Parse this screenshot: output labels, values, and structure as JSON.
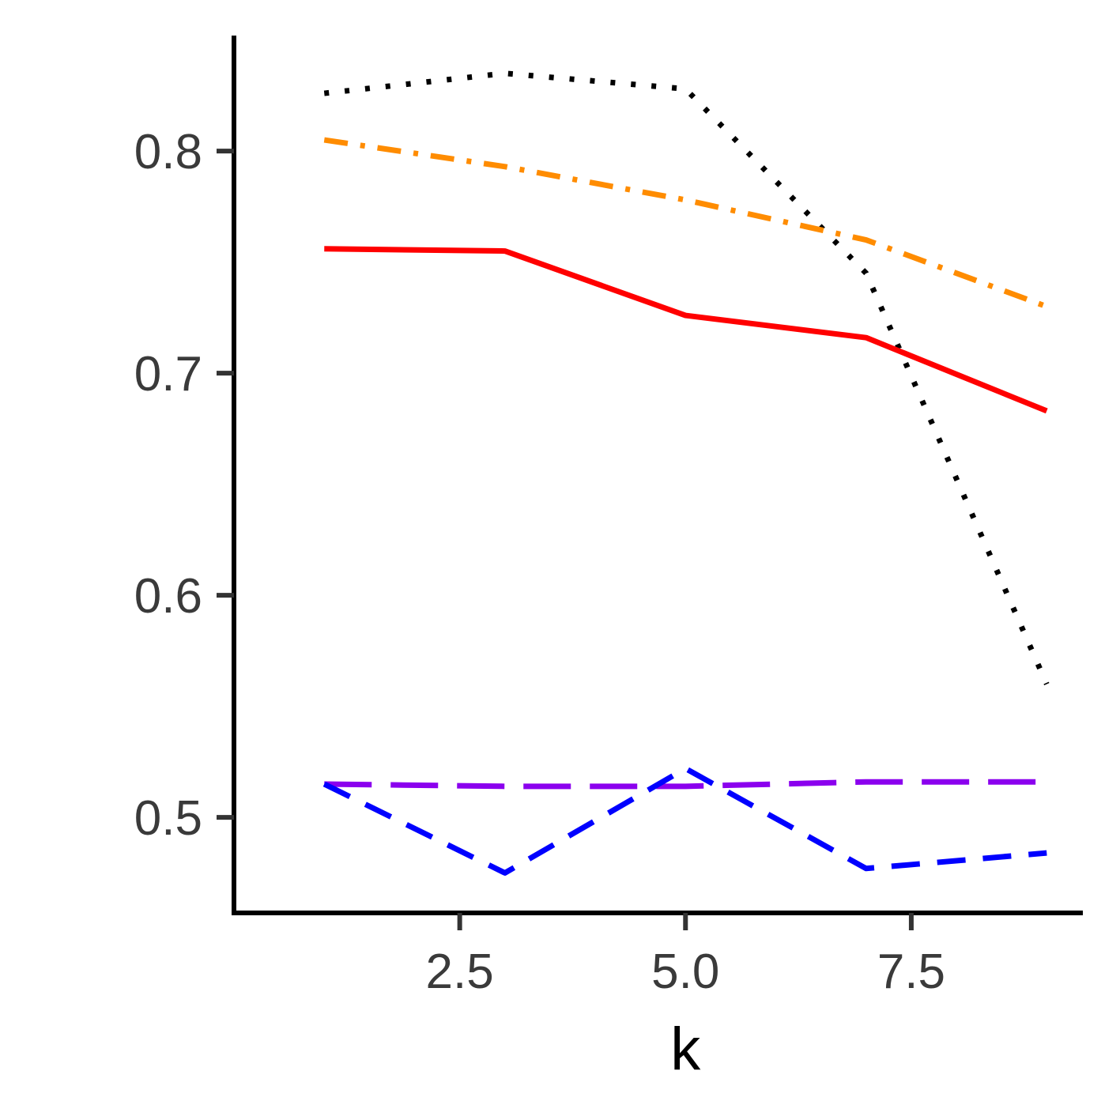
{
  "chart_data": {
    "type": "line",
    "title": "",
    "xlabel": "k",
    "ylabel": "",
    "x": [
      1,
      3,
      5,
      7,
      9
    ],
    "xlim": [
      0.0,
      9.4
    ],
    "ylim": [
      0.457,
      0.852
    ],
    "xticks": [
      2.5,
      5.0,
      7.5
    ],
    "xtick_labels": [
      "2.5",
      "5.0",
      "7.5"
    ],
    "yticks": [
      0.5,
      0.6,
      0.7,
      0.8
    ],
    "ytick_labels": [
      "0.5",
      "0.6",
      "0.7",
      "0.8"
    ],
    "grid": false,
    "legend": "none",
    "series": [
      {
        "values": [
          0.826,
          0.835,
          0.828,
          0.745,
          0.56
        ],
        "color": "#000000",
        "dash": "dotted"
      },
      {
        "values": [
          0.805,
          0.793,
          0.778,
          0.76,
          0.73
        ],
        "color": "#FF8C00",
        "dash": "dotdash"
      },
      {
        "values": [
          0.756,
          0.755,
          0.726,
          0.716,
          0.683
        ],
        "color": "#FF0000",
        "dash": "solid"
      },
      {
        "values": [
          0.515,
          0.514,
          0.514,
          0.516,
          0.516
        ],
        "color": "#8B00EE",
        "dash": "longdash"
      },
      {
        "values": [
          0.515,
          0.475,
          0.522,
          0.477,
          0.484
        ],
        "color": "#0000FF",
        "dash": "dashed"
      }
    ]
  }
}
